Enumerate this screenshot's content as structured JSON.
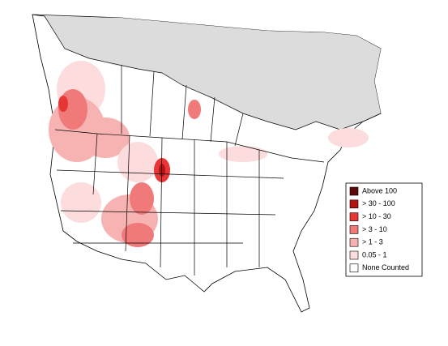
{
  "legend": {
    "items": [
      {
        "label": "Above 100",
        "color": "#5c0a0a"
      },
      {
        "label": "> 30 - 100",
        "color": "#b31414"
      },
      {
        "label": "> 10 - 30",
        "color": "#e83535"
      },
      {
        "label": "> 3 - 10",
        "color": "#f07a7a"
      },
      {
        "label": "> 1 - 3",
        "color": "#f7b2b2"
      },
      {
        "label": "0.05 - 1",
        "color": "#fcdcdc"
      },
      {
        "label": "None Counted",
        "color": "#ffffff"
      }
    ]
  }
}
